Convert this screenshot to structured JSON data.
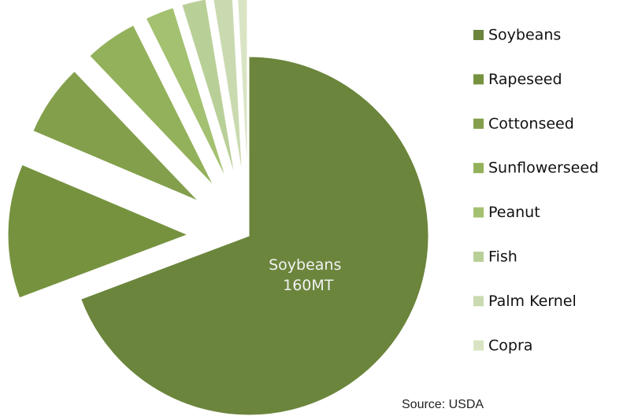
{
  "chart_data": {
    "type": "pie",
    "categories": [
      "Soybeans",
      "Rapeseed",
      "Cottonseed",
      "Sunflowerseed",
      "Peanut",
      "Fish",
      "Palm Kernel",
      "Copra"
    ],
    "values": [
      160,
      28,
      15,
      11,
      6,
      5,
      4,
      2
    ],
    "value_labels": [
      "160MT",
      null,
      null,
      null,
      null,
      null,
      null,
      null
    ],
    "colors": [
      "#6b853c",
      "#76923f",
      "#839f4c",
      "#93b15a",
      "#a3c170",
      "#b9cf98",
      "#cadab0",
      "#d9e4c4"
    ],
    "legend": "right",
    "source": "Source: USDA"
  }
}
